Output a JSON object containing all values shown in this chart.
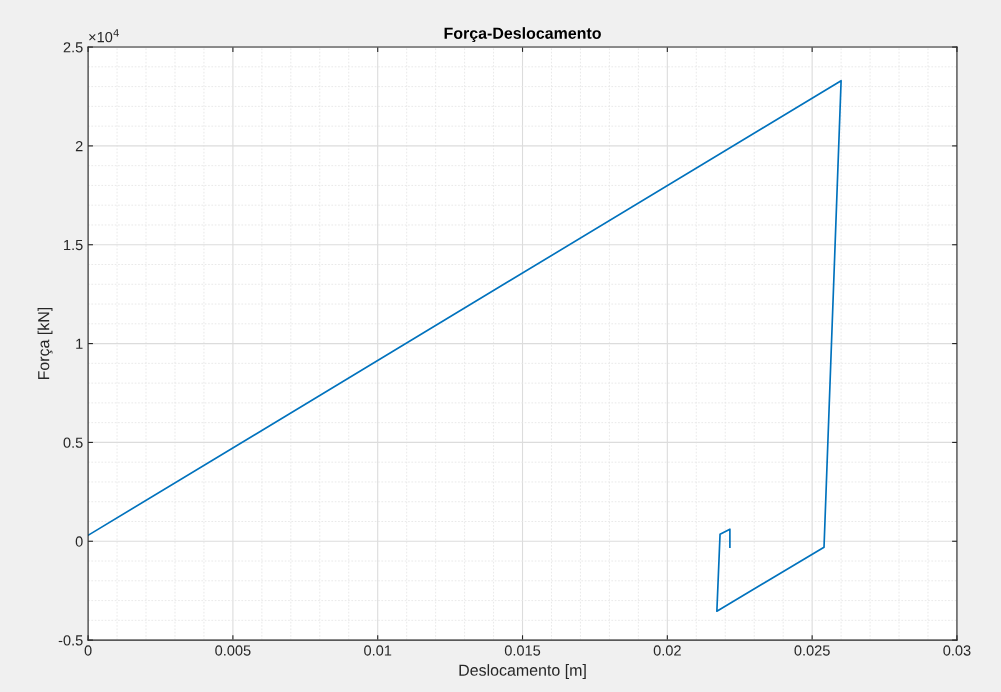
{
  "chart_data": {
    "type": "line",
    "title": "Força-Deslocamento",
    "xlabel": "Deslocamento [m]",
    "ylabel": "Força [kN]",
    "x": [
      0,
      0.026,
      0.02541,
      0.02171,
      0.02182,
      0.02216,
      0.02216
    ],
    "series": [
      {
        "color": "#0072bd",
        "values": [
          0.03,
          2.33,
          -0.03,
          -0.354,
          0.035,
          0.061,
          -0.03
        ]
      }
    ],
    "xlim": [
      0,
      0.03
    ],
    "xticks": [
      0,
      0.005,
      0.01,
      0.015,
      0.02,
      0.025,
      0.03
    ],
    "ylim": [
      -0.5,
      2.5
    ],
    "yticks": [
      -0.5,
      0,
      0.5,
      1,
      1.5,
      2,
      2.5
    ],
    "annotations": [
      "×10$^{4}$"
    ],
    "grid": true,
    "marker": "none",
    "line_style": "solid"
  }
}
